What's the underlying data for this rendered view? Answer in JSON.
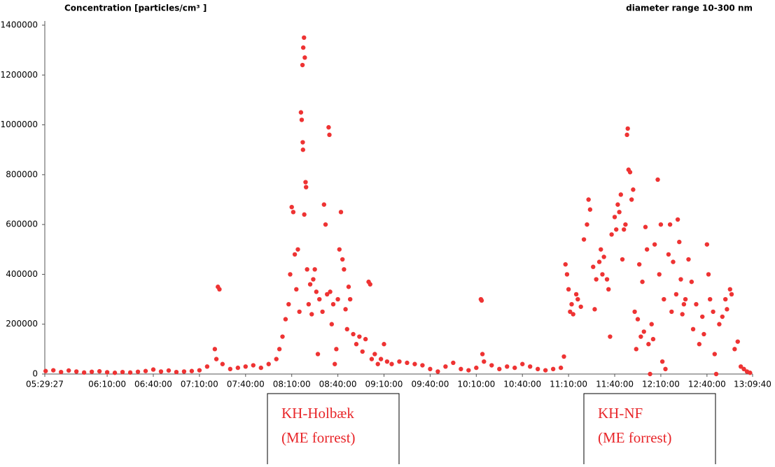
{
  "chart_data": {
    "type": "scatter",
    "title": "Concentration [particles/cm³ ]",
    "subtitle": "diameter range 10-300 nm",
    "xlim": [
      "05:29:27",
      "13:09:40"
    ],
    "xticks": [
      "05:29:27",
      "06:10:00",
      "06:40:00",
      "07:10:00",
      "07:40:00",
      "08:10:00",
      "08:40:00",
      "09:10:00",
      "09:40:00",
      "10:10:00",
      "10:40:00",
      "11:10:00",
      "11:40:00",
      "12:10:00",
      "12:40:00",
      "13:09:40"
    ],
    "ylim": [
      0,
      1400000
    ],
    "yticks": [
      0,
      200000,
      400000,
      600000,
      800000,
      1000000,
      1200000,
      1400000
    ],
    "series": [
      {
        "color": "#ee3333",
        "x": [
          "05:30:00",
          "05:35:00",
          "05:40:00",
          "05:45:00",
          "05:50:00",
          "05:55:00",
          "06:00:00",
          "06:05:00",
          "06:10:00",
          "06:15:00",
          "06:20:00",
          "06:25:00",
          "06:30:00",
          "06:35:00",
          "06:40:00",
          "06:45:00",
          "06:50:00",
          "06:55:00",
          "07:00:00",
          "07:05:00",
          "07:10:00",
          "07:15:00",
          "07:20:00",
          "07:21:00",
          "07:22:00",
          "07:23:00",
          "07:25:00",
          "07:30:00",
          "07:35:00",
          "07:40:00",
          "07:45:00",
          "07:50:00",
          "07:55:00",
          "08:00:00",
          "08:02:00",
          "08:04:00",
          "08:06:00",
          "08:08:00",
          "08:09:00",
          "08:10:00",
          "08:11:00",
          "08:12:00",
          "08:13:00",
          "08:14:00",
          "08:15:00",
          "08:16:00",
          "08:16:30",
          "08:17:00",
          "08:17:10",
          "08:17:20",
          "08:17:30",
          "08:18:00",
          "08:18:10",
          "08:18:30",
          "08:19:00",
          "08:19:20",
          "08:20:00",
          "08:21:00",
          "08:22:00",
          "08:23:00",
          "08:24:00",
          "08:25:00",
          "08:26:00",
          "08:27:00",
          "08:28:00",
          "08:30:00",
          "08:31:00",
          "08:32:00",
          "08:33:00",
          "08:34:00",
          "08:34:30",
          "08:35:00",
          "08:36:00",
          "08:37:00",
          "08:38:00",
          "08:39:00",
          "08:40:00",
          "08:41:00",
          "08:42:00",
          "08:43:00",
          "08:44:00",
          "08:45:00",
          "08:46:00",
          "08:47:00",
          "08:48:00",
          "08:50:00",
          "08:52:00",
          "08:54:00",
          "08:56:00",
          "08:58:00",
          "09:00:00",
          "09:01:00",
          "09:02:00",
          "09:04:00",
          "09:06:00",
          "09:08:00",
          "09:10:00",
          "09:12:00",
          "09:15:00",
          "09:20:00",
          "09:25:00",
          "09:30:00",
          "09:35:00",
          "09:40:00",
          "09:45:00",
          "09:50:00",
          "09:55:00",
          "10:00:00",
          "10:05:00",
          "10:10:00",
          "10:13:00",
          "10:13:30",
          "10:14:00",
          "10:15:00",
          "10:20:00",
          "10:25:00",
          "10:30:00",
          "10:35:00",
          "10:40:00",
          "10:45:00",
          "10:50:00",
          "10:55:00",
          "11:00:00",
          "11:05:00",
          "11:07:00",
          "11:08:00",
          "11:09:00",
          "11:10:00",
          "11:11:00",
          "11:12:00",
          "11:13:00",
          "11:15:00",
          "11:16:00",
          "11:18:00",
          "11:20:00",
          "11:22:00",
          "11:23:00",
          "11:24:00",
          "11:26:00",
          "11:27:00",
          "11:28:00",
          "11:30:00",
          "11:31:00",
          "11:32:00",
          "11:33:00",
          "11:35:00",
          "11:36:00",
          "11:37:00",
          "11:38:00",
          "11:40:00",
          "11:41:00",
          "11:42:00",
          "11:43:00",
          "11:44:00",
          "11:45:00",
          "11:46:00",
          "11:47:00",
          "11:48:00",
          "11:48:30",
          "11:49:00",
          "11:50:00",
          "11:51:00",
          "11:52:00",
          "11:53:00",
          "11:54:00",
          "11:55:00",
          "11:56:00",
          "11:57:00",
          "11:58:00",
          "11:59:00",
          "12:00:00",
          "12:01:00",
          "12:02:00",
          "12:03:00",
          "12:04:00",
          "12:05:00",
          "12:06:00",
          "12:08:00",
          "12:09:00",
          "12:10:00",
          "12:11:00",
          "12:12:00",
          "12:13:00",
          "12:15:00",
          "12:16:00",
          "12:17:00",
          "12:18:00",
          "12:20:00",
          "12:21:00",
          "12:22:00",
          "12:23:00",
          "12:24:00",
          "12:25:00",
          "12:26:00",
          "12:28:00",
          "12:30:00",
          "12:31:00",
          "12:33:00",
          "12:35:00",
          "12:37:00",
          "12:38:00",
          "12:40:00",
          "12:41:00",
          "12:42:00",
          "12:44:00",
          "12:45:00",
          "12:46:00",
          "12:48:00",
          "12:50:00",
          "12:52:00",
          "12:53:00",
          "12:55:00",
          "12:56:00",
          "12:58:00",
          "13:00:00",
          "13:02:00",
          "13:04:00",
          "13:06:00",
          "13:08:00"
        ],
        "values": [
          12000,
          15000,
          8000,
          14000,
          10000,
          6000,
          9000,
          11000,
          7000,
          5000,
          8000,
          6000,
          9000,
          12000,
          18000,
          10000,
          14000,
          8000,
          10000,
          12000,
          15000,
          30000,
          100000,
          60000,
          350000,
          340000,
          40000,
          20000,
          25000,
          30000,
          35000,
          25000,
          40000,
          60000,
          100000,
          150000,
          220000,
          280000,
          400000,
          670000,
          650000,
          480000,
          340000,
          500000,
          250000,
          1050000,
          1020000,
          1240000,
          930000,
          900000,
          1310000,
          1350000,
          640000,
          1270000,
          770000,
          750000,
          420000,
          280000,
          360000,
          240000,
          380000,
          420000,
          330000,
          80000,
          300000,
          250000,
          680000,
          600000,
          320000,
          990000,
          960000,
          330000,
          200000,
          280000,
          40000,
          100000,
          300000,
          500000,
          650000,
          460000,
          420000,
          260000,
          180000,
          350000,
          300000,
          160000,
          120000,
          150000,
          90000,
          140000,
          370000,
          360000,
          60000,
          80000,
          40000,
          60000,
          120000,
          50000,
          40000,
          50000,
          45000,
          40000,
          35000,
          20000,
          10000,
          30000,
          45000,
          20000,
          15000,
          25000,
          300000,
          295000,
          80000,
          50000,
          35000,
          20000,
          30000,
          25000,
          40000,
          30000,
          20000,
          15000,
          20000,
          25000,
          70000,
          440000,
          400000,
          340000,
          250000,
          280000,
          240000,
          320000,
          300000,
          270000,
          540000,
          600000,
          700000,
          660000,
          430000,
          260000,
          380000,
          450000,
          500000,
          400000,
          470000,
          380000,
          340000,
          150000,
          560000,
          630000,
          580000,
          680000,
          650000,
          720000,
          460000,
          580000,
          600000,
          960000,
          985000,
          820000,
          810000,
          700000,
          740000,
          250000,
          100000,
          220000,
          440000,
          150000,
          370000,
          170000,
          590000,
          500000,
          120000,
          0,
          200000,
          140000,
          520000,
          780000,
          400000,
          600000,
          50000,
          300000,
          20000,
          480000,
          600000,
          250000,
          450000,
          320000,
          620000,
          530000,
          380000,
          240000,
          280000,
          300000,
          460000,
          370000,
          180000,
          280000,
          120000,
          230000,
          160000,
          520000,
          400000,
          300000,
          250000,
          80000,
          0,
          200000,
          230000,
          300000,
          260000,
          340000,
          320000,
          100000,
          130000,
          30000,
          20000,
          10000,
          5000
        ]
      }
    ],
    "annotations": [
      {
        "lines": [
          "KH-Holbæk",
          "(ME forrest)"
        ]
      },
      {
        "lines": [
          "KH-NF",
          "(ME forrest)"
        ]
      }
    ]
  }
}
